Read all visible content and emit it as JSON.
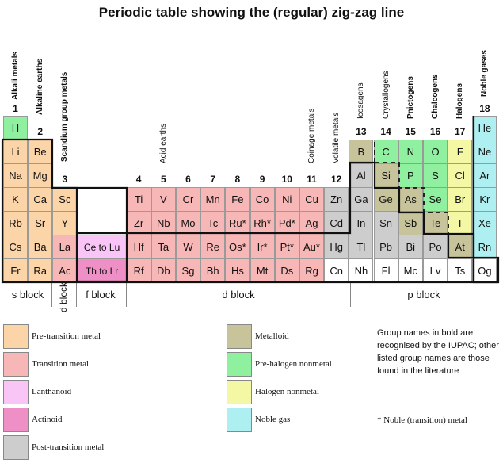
{
  "title": "Periodic table showing the (regular) zig-zag line",
  "colors": {
    "pre_transition": "#fbd4a8",
    "transition": "#f8b7b7",
    "lanthanoid": "#f9c4f6",
    "actinoid": "#ee8fc5",
    "post_transition": "#cdcdcd",
    "metalloid": "#c7c39a",
    "pre_halogen": "#8ff0a0",
    "halogen": "#f4f7a4",
    "noble_gas": "#aef0f2",
    "unknown": "#ffffff"
  },
  "group_numbers": [
    {
      "col": 1,
      "label": "1"
    },
    {
      "col": 2,
      "label": "2"
    },
    {
      "col": 3,
      "label": "3"
    },
    {
      "col": 4,
      "label": "4"
    },
    {
      "col": 5,
      "label": "5"
    },
    {
      "col": 6,
      "label": "6"
    },
    {
      "col": 7,
      "label": "7"
    },
    {
      "col": 8,
      "label": "8"
    },
    {
      "col": 9,
      "label": "9"
    },
    {
      "col": 10,
      "label": "10"
    },
    {
      "col": 11,
      "label": "11"
    },
    {
      "col": 12,
      "label": "12"
    },
    {
      "col": 13,
      "label": "13"
    },
    {
      "col": 14,
      "label": "14"
    },
    {
      "col": 15,
      "label": "15"
    },
    {
      "col": 16,
      "label": "16"
    },
    {
      "col": 17,
      "label": "17"
    },
    {
      "col": 18,
      "label": "18"
    }
  ],
  "group_names": [
    {
      "col": 1,
      "label": "Alkali metals",
      "bold": true
    },
    {
      "col": 2,
      "label": "Alkaline earths",
      "bold": true
    },
    {
      "col": 3,
      "label": "Scandium group metals",
      "bold": true
    },
    {
      "col": 5,
      "label": "Acid earths",
      "bold": false
    },
    {
      "col": 11,
      "label": "Coinage metals",
      "bold": false
    },
    {
      "col": 12,
      "label": "Volatile metals",
      "bold": false
    },
    {
      "col": 13,
      "label": "Icosagens",
      "bold": false
    },
    {
      "col": 14,
      "label": "Crystallogens",
      "bold": false
    },
    {
      "col": 15,
      "label": "Pnictogens",
      "bold": true
    },
    {
      "col": 16,
      "label": "Chalcogens",
      "bold": true
    },
    {
      "col": 17,
      "label": "Halogens",
      "bold": true
    },
    {
      "col": 18,
      "label": "Noble gases",
      "bold": true
    }
  ],
  "elements": [
    {
      "s": "H",
      "col": 1,
      "row": 1,
      "cat": "pre_halogen"
    },
    {
      "s": "He",
      "col": 18,
      "row": 1,
      "cat": "noble_gas"
    },
    {
      "s": "Li",
      "col": 1,
      "row": 2,
      "cat": "pre_transition"
    },
    {
      "s": "Be",
      "col": 2,
      "row": 2,
      "cat": "pre_transition"
    },
    {
      "s": "B",
      "col": 13,
      "row": 2,
      "cat": "metalloid"
    },
    {
      "s": "C",
      "col": 14,
      "row": 2,
      "cat": "pre_halogen"
    },
    {
      "s": "N",
      "col": 15,
      "row": 2,
      "cat": "pre_halogen"
    },
    {
      "s": "O",
      "col": 16,
      "row": 2,
      "cat": "pre_halogen"
    },
    {
      "s": "F",
      "col": 17,
      "row": 2,
      "cat": "halogen"
    },
    {
      "s": "Ne",
      "col": 18,
      "row": 2,
      "cat": "noble_gas"
    },
    {
      "s": "Na",
      "col": 1,
      "row": 3,
      "cat": "pre_transition"
    },
    {
      "s": "Mg",
      "col": 2,
      "row": 3,
      "cat": "pre_transition"
    },
    {
      "s": "Al",
      "col": 13,
      "row": 3,
      "cat": "post_transition"
    },
    {
      "s": "Si",
      "col": 14,
      "row": 3,
      "cat": "metalloid"
    },
    {
      "s": "P",
      "col": 15,
      "row": 3,
      "cat": "pre_halogen"
    },
    {
      "s": "S",
      "col": 16,
      "row": 3,
      "cat": "pre_halogen"
    },
    {
      "s": "Cl",
      "col": 17,
      "row": 3,
      "cat": "halogen"
    },
    {
      "s": "Ar",
      "col": 18,
      "row": 3,
      "cat": "noble_gas"
    },
    {
      "s": "K",
      "col": 1,
      "row": 4,
      "cat": "pre_transition"
    },
    {
      "s": "Ca",
      "col": 2,
      "row": 4,
      "cat": "pre_transition"
    },
    {
      "s": "Sc",
      "col": 3,
      "row": 4,
      "cat": "pre_transition"
    },
    {
      "s": "Ti",
      "col": 4,
      "row": 4,
      "cat": "transition"
    },
    {
      "s": "V",
      "col": 5,
      "row": 4,
      "cat": "transition"
    },
    {
      "s": "Cr",
      "col": 6,
      "row": 4,
      "cat": "transition"
    },
    {
      "s": "Mn",
      "col": 7,
      "row": 4,
      "cat": "transition"
    },
    {
      "s": "Fe",
      "col": 8,
      "row": 4,
      "cat": "transition"
    },
    {
      "s": "Co",
      "col": 9,
      "row": 4,
      "cat": "transition"
    },
    {
      "s": "Ni",
      "col": 10,
      "row": 4,
      "cat": "transition"
    },
    {
      "s": "Cu",
      "col": 11,
      "row": 4,
      "cat": "transition"
    },
    {
      "s": "Zn",
      "col": 12,
      "row": 4,
      "cat": "post_transition"
    },
    {
      "s": "Ga",
      "col": 13,
      "row": 4,
      "cat": "post_transition"
    },
    {
      "s": "Ge",
      "col": 14,
      "row": 4,
      "cat": "metalloid"
    },
    {
      "s": "As",
      "col": 15,
      "row": 4,
      "cat": "metalloid"
    },
    {
      "s": "Se",
      "col": 16,
      "row": 4,
      "cat": "pre_halogen"
    },
    {
      "s": "Br",
      "col": 17,
      "row": 4,
      "cat": "halogen"
    },
    {
      "s": "Kr",
      "col": 18,
      "row": 4,
      "cat": "noble_gas"
    },
    {
      "s": "Rb",
      "col": 1,
      "row": 5,
      "cat": "pre_transition"
    },
    {
      "s": "Sr",
      "col": 2,
      "row": 5,
      "cat": "pre_transition"
    },
    {
      "s": "Y",
      "col": 3,
      "row": 5,
      "cat": "pre_transition"
    },
    {
      "s": "Zr",
      "col": 4,
      "row": 5,
      "cat": "transition"
    },
    {
      "s": "Nb",
      "col": 5,
      "row": 5,
      "cat": "transition"
    },
    {
      "s": "Mo",
      "col": 6,
      "row": 5,
      "cat": "transition"
    },
    {
      "s": "Tc",
      "col": 7,
      "row": 5,
      "cat": "transition"
    },
    {
      "s": "Ru*",
      "col": 8,
      "row": 5,
      "cat": "transition"
    },
    {
      "s": "Rh*",
      "col": 9,
      "row": 5,
      "cat": "transition"
    },
    {
      "s": "Pd*",
      "col": 10,
      "row": 5,
      "cat": "transition"
    },
    {
      "s": "Ag",
      "col": 11,
      "row": 5,
      "cat": "transition"
    },
    {
      "s": "Cd",
      "col": 12,
      "row": 5,
      "cat": "post_transition"
    },
    {
      "s": "In",
      "col": 13,
      "row": 5,
      "cat": "post_transition"
    },
    {
      "s": "Sn",
      "col": 14,
      "row": 5,
      "cat": "post_transition"
    },
    {
      "s": "Sb",
      "col": 15,
      "row": 5,
      "cat": "metalloid"
    },
    {
      "s": "Te",
      "col": 16,
      "row": 5,
      "cat": "metalloid"
    },
    {
      "s": "I",
      "col": 17,
      "row": 5,
      "cat": "halogen"
    },
    {
      "s": "Xe",
      "col": 18,
      "row": 5,
      "cat": "noble_gas"
    },
    {
      "s": "Cs",
      "col": 1,
      "row": 6,
      "cat": "pre_transition"
    },
    {
      "s": "Ba",
      "col": 2,
      "row": 6,
      "cat": "pre_transition"
    },
    {
      "s": "La",
      "col": 3,
      "row": 6,
      "cat": "transition"
    },
    {
      "s": "Ce to Lu",
      "col": 4,
      "row": 6,
      "cat": "lanthanoid",
      "wide": true,
      "fblock": true
    },
    {
      "s": "Hf",
      "col": 4,
      "row": 6,
      "cat": "transition"
    },
    {
      "s": "Ta",
      "col": 5,
      "row": 6,
      "cat": "transition"
    },
    {
      "s": "W",
      "col": 6,
      "row": 6,
      "cat": "transition"
    },
    {
      "s": "Re",
      "col": 7,
      "row": 6,
      "cat": "transition"
    },
    {
      "s": "Os*",
      "col": 8,
      "row": 6,
      "cat": "transition"
    },
    {
      "s": "Ir*",
      "col": 9,
      "row": 6,
      "cat": "transition"
    },
    {
      "s": "Pt*",
      "col": 10,
      "row": 6,
      "cat": "transition"
    },
    {
      "s": "Au*",
      "col": 11,
      "row": 6,
      "cat": "transition"
    },
    {
      "s": "Hg",
      "col": 12,
      "row": 6,
      "cat": "post_transition"
    },
    {
      "s": "Tl",
      "col": 13,
      "row": 6,
      "cat": "post_transition"
    },
    {
      "s": "Pb",
      "col": 14,
      "row": 6,
      "cat": "post_transition"
    },
    {
      "s": "Bi",
      "col": 15,
      "row": 6,
      "cat": "post_transition"
    },
    {
      "s": "Po",
      "col": 16,
      "row": 6,
      "cat": "post_transition"
    },
    {
      "s": "At",
      "col": 17,
      "row": 6,
      "cat": "metalloid"
    },
    {
      "s": "Rn",
      "col": 18,
      "row": 6,
      "cat": "noble_gas"
    },
    {
      "s": "Fr",
      "col": 1,
      "row": 7,
      "cat": "pre_transition"
    },
    {
      "s": "Ra",
      "col": 2,
      "row": 7,
      "cat": "pre_transition"
    },
    {
      "s": "Ac",
      "col": 3,
      "row": 7,
      "cat": "transition"
    },
    {
      "s": "Th to Lr",
      "col": 4,
      "row": 7,
      "cat": "actinoid",
      "wide": true,
      "fblock": true
    },
    {
      "s": "Rf",
      "col": 4,
      "row": 7,
      "cat": "transition"
    },
    {
      "s": "Db",
      "col": 5,
      "row": 7,
      "cat": "transition"
    },
    {
      "s": "Sg",
      "col": 6,
      "row": 7,
      "cat": "transition"
    },
    {
      "s": "Bh",
      "col": 7,
      "row": 7,
      "cat": "transition"
    },
    {
      "s": "Hs",
      "col": 8,
      "row": 7,
      "cat": "transition"
    },
    {
      "s": "Mt",
      "col": 9,
      "row": 7,
      "cat": "transition"
    },
    {
      "s": "Ds",
      "col": 10,
      "row": 7,
      "cat": "transition"
    },
    {
      "s": "Rg",
      "col": 11,
      "row": 7,
      "cat": "transition"
    },
    {
      "s": "Cn",
      "col": 12,
      "row": 7,
      "cat": "unknown"
    },
    {
      "s": "Nh",
      "col": 13,
      "row": 7,
      "cat": "unknown"
    },
    {
      "s": "Fl",
      "col": 14,
      "row": 7,
      "cat": "unknown"
    },
    {
      "s": "Mc",
      "col": 15,
      "row": 7,
      "cat": "unknown"
    },
    {
      "s": "Lv",
      "col": 16,
      "row": 7,
      "cat": "unknown"
    },
    {
      "s": "Ts",
      "col": 17,
      "row": 7,
      "cat": "unknown"
    },
    {
      "s": "Og",
      "col": 18,
      "row": 7,
      "cat": "unknown"
    }
  ],
  "blocks": {
    "s": "s block",
    "d_small": "d block",
    "f": "f block",
    "d": "d block",
    "p": "p block"
  },
  "legend": [
    {
      "cat": "pre_transition",
      "label": "Pre-transition metal"
    },
    {
      "cat": "transition",
      "label": "Transition metal"
    },
    {
      "cat": "lanthanoid",
      "label": "Lanthanoid"
    },
    {
      "cat": "actinoid",
      "label": "Actinoid"
    },
    {
      "cat": "post_transition",
      "label": "Post-transition metal"
    },
    {
      "cat": "metalloid",
      "label": "Metalloid"
    },
    {
      "cat": "pre_halogen",
      "label": "Pre-halogen nonmetal"
    },
    {
      "cat": "halogen",
      "label": "Halogen nonmetal"
    },
    {
      "cat": "noble_gas",
      "label": "Noble gas"
    }
  ],
  "notes": {
    "group_names": "Group names in bold are recognised by the IUPAC; other listed group names are those found in the literature",
    "noble_metal": "* Noble (transition) metal"
  }
}
